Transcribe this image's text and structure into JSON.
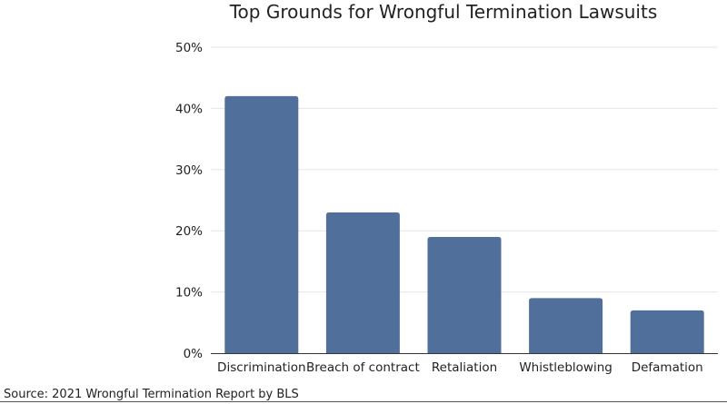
{
  "chart_data": {
    "type": "bar",
    "title": "Top Grounds for Wrongful Termination Lawsuits",
    "xlabel": "",
    "ylabel": "",
    "categories": [
      "Discrimination",
      "Breach of contract",
      "Retaliation",
      "Whistleblowing",
      "Defamation"
    ],
    "values": [
      42,
      23,
      19,
      9,
      7
    ],
    "ylim": [
      0,
      50
    ],
    "yticks": [
      0,
      10,
      20,
      30,
      40,
      50
    ],
    "ytick_labels": [
      "0%",
      "10%",
      "20%",
      "30%",
      "40%",
      "50%"
    ],
    "grid": true,
    "bar_color": "#516f9b"
  },
  "source": "Source: 2021 Wrongful Termination Report by BLS"
}
